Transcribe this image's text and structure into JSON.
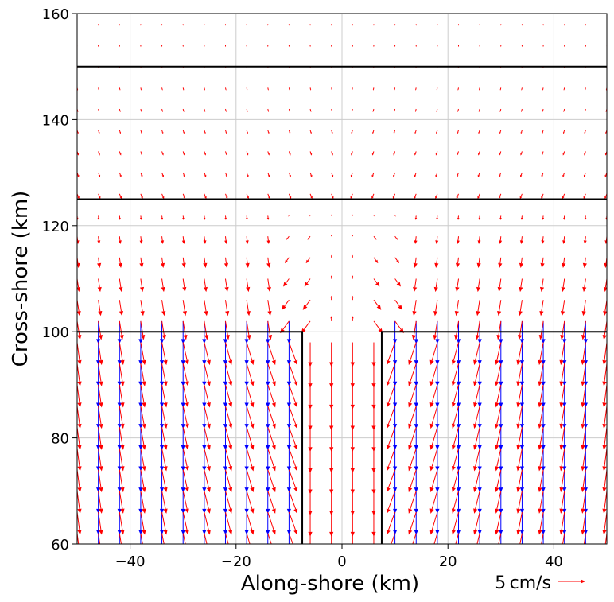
{
  "chart_data": {
    "type": "quiver",
    "xlabel": "Along-shore (km)",
    "ylabel": "Cross-shore (km)",
    "xlim": [
      -50,
      50
    ],
    "ylim": [
      60,
      160
    ],
    "xticks": [
      -40,
      -20,
      0,
      20,
      40
    ],
    "xtick_labels": [
      "−40",
      "−20",
      "0",
      "20",
      "40"
    ],
    "yticks": [
      60,
      80,
      100,
      120,
      140,
      160
    ],
    "ytick_labels": [
      "60",
      "80",
      "100",
      "120",
      "140",
      "160"
    ],
    "grid": true,
    "quiver_key": {
      "label": "5 cm/s",
      "magnitude_cm_s": 5,
      "color": "#ff0000"
    },
    "series": [
      {
        "color": "#0000ff",
        "grid_x": [
          -46,
          -42,
          -38,
          -34,
          -30,
          -26,
          -22,
          -18,
          -14,
          -10,
          10,
          14,
          18,
          22,
          26,
          30,
          34,
          38,
          42,
          46
        ],
        "grid_y_range": [
          62,
          104
        ],
        "grid_y_step": 4,
        "u_cm_s": 0,
        "v_cm_s": -6
      },
      {
        "color": "#ff0000",
        "grid_x_step": 4,
        "grid_y_step": 4,
        "x_range": [
          -50,
          50
        ],
        "y_range": [
          62,
          158
        ],
        "field": "converging cross-shore flow toward channel at x=0, strongest near y=60 to 100, weak above y=125"
      }
    ],
    "boundaries": [
      {
        "type": "horizontal",
        "y": 150,
        "x": [
          -50,
          50
        ]
      },
      {
        "type": "horizontal",
        "y": 125,
        "x": [
          -50,
          50
        ]
      },
      {
        "type": "step",
        "points": [
          [
            -50,
            100
          ],
          [
            -7.5,
            100
          ],
          [
            -7.5,
            60
          ]
        ]
      },
      {
        "type": "step",
        "points": [
          [
            7.5,
            60
          ],
          [
            7.5,
            100
          ],
          [
            50,
            100
          ]
        ]
      }
    ],
    "colors": {
      "primary_vectors": "#ff0000",
      "secondary_vectors": "#0000ff",
      "boundary": "#000000",
      "grid": "#cccccc"
    }
  }
}
